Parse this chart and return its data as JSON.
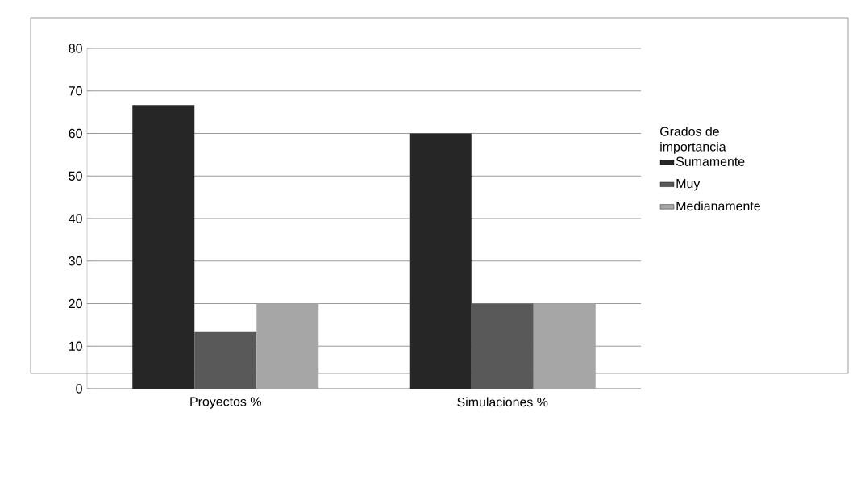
{
  "chart_data": {
    "type": "bar",
    "categories": [
      "Proyectos %",
      "Simulaciones %"
    ],
    "legend_title": "Grados de importancia",
    "series": [
      {
        "name": "Sumamente",
        "color": "#262626",
        "values": [
          66.7,
          60
        ]
      },
      {
        "name": "Muy",
        "color": "#595959",
        "values": [
          13.3,
          20
        ]
      },
      {
        "name": "Medianamente",
        "color": "#a6a6a6",
        "values": [
          20,
          20
        ]
      }
    ],
    "ylim": [
      0,
      80
    ],
    "yticks": [
      0,
      10,
      20,
      30,
      40,
      50,
      60,
      70,
      80
    ],
    "grid": "y",
    "legend": "right"
  }
}
